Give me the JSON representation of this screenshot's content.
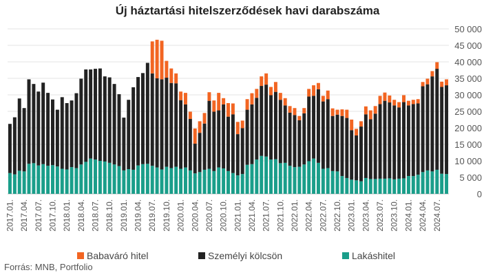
{
  "chart_data": {
    "type": "bar",
    "stacked": true,
    "title": "Új háztartási hitelszerződések havi darabszáma",
    "x": [
      "2017.01.",
      "2017.02.",
      "2017.03.",
      "2017.04.",
      "2017.05.",
      "2017.06.",
      "2017.07.",
      "2017.08.",
      "2017.09.",
      "2017.10.",
      "2017.11.",
      "2017.12.",
      "2018.01.",
      "2018.02.",
      "2018.03.",
      "2018.04.",
      "2018.05.",
      "2018.06.",
      "2018.07.",
      "2018.08.",
      "2018.09.",
      "2018.10.",
      "2018.11.",
      "2018.12.",
      "2019.01.",
      "2019.02.",
      "2019.03.",
      "2019.04.",
      "2019.05.",
      "2019.06.",
      "2019.07.",
      "2019.08.",
      "2019.09.",
      "2019.10.",
      "2019.11.",
      "2019.12.",
      "2020.01.",
      "2020.02.",
      "2020.03.",
      "2020.04.",
      "2020.05.",
      "2020.06.",
      "2020.07.",
      "2020.08.",
      "2020.09.",
      "2020.10.",
      "2020.11.",
      "2020.12.",
      "2021.01.",
      "2021.02.",
      "2021.03.",
      "2021.04.",
      "2021.05.",
      "2021.06.",
      "2021.07.",
      "2021.08.",
      "2021.09.",
      "2021.10.",
      "2021.11.",
      "2021.12.",
      "2022.01.",
      "2022.02.",
      "2022.03.",
      "2022.04.",
      "2022.05.",
      "2022.06.",
      "2022.07.",
      "2022.08.",
      "2022.09.",
      "2022.10.",
      "2022.11.",
      "2022.12.",
      "2023.01.",
      "2023.02.",
      "2023.03.",
      "2023.04.",
      "2023.05.",
      "2023.06.",
      "2023.07.",
      "2023.08.",
      "2023.09.",
      "2023.10.",
      "2023.11.",
      "2023.12.",
      "2024.01.",
      "2024.02.",
      "2024.03.",
      "2024.04.",
      "2024.05.",
      "2024.06.",
      "2024.07.",
      "2024.08.",
      "2024.09."
    ],
    "xtick_labels": [
      "2017.01.",
      "2017.04.",
      "2017.07.",
      "2017.10.",
      "2018.01.",
      "2018.04.",
      "2018.07.",
      "2018.10.",
      "2019.01.",
      "2019.04.",
      "2019.07.",
      "2019.10.",
      "2020.01.",
      "2020.04.",
      "2020.07.",
      "2020.10.",
      "2021.01.",
      "2021.04.",
      "2021.07.",
      "2021.10.",
      "2022.01.",
      "2022.04.",
      "2022.07.",
      "2022.10.",
      "2023.01.",
      "2023.04.",
      "2023.07.",
      "2023.10.",
      "2024.01.",
      "2024.04.",
      "2024.07."
    ],
    "series": [
      {
        "name": "Lakáshitel",
        "color": "#1a9e8a",
        "values": [
          6300,
          5900,
          7000,
          6800,
          9100,
          9300,
          8600,
          9000,
          8500,
          8700,
          8300,
          7600,
          7400,
          8100,
          7800,
          8900,
          9700,
          10700,
          10400,
          10000,
          9800,
          9400,
          8900,
          8400,
          7100,
          7500,
          7300,
          8600,
          9000,
          9100,
          8500,
          8000,
          7400,
          8200,
          7800,
          8200,
          7600,
          8000,
          7100,
          6200,
          6600,
          7300,
          7600,
          6900,
          8000,
          7700,
          6900,
          6300,
          5600,
          6000,
          8800,
          9000,
          10400,
          11500,
          11300,
          10400,
          10500,
          9300,
          9400,
          8500,
          8100,
          8200,
          8900,
          9900,
          10700,
          9400,
          7600,
          7800,
          6900,
          6800,
          5400,
          4800,
          4300,
          4100,
          3800,
          4800,
          4500,
          4500,
          4600,
          4600,
          4700,
          4400,
          4600,
          4700,
          5400,
          5400,
          5800,
          6600,
          7100,
          6800,
          7300,
          6100,
          6000
        ]
      },
      {
        "name": "Személyi kölcsön",
        "color": "#222222",
        "values": [
          14900,
          17300,
          21900,
          19200,
          25600,
          24000,
          22400,
          24700,
          22100,
          19900,
          17200,
          21700,
          20100,
          20200,
          22700,
          26000,
          28000,
          27000,
          27500,
          28000,
          25800,
          25900,
          24400,
          21800,
          16000,
          21000,
          25000,
          26800,
          27600,
          30600,
          28000,
          27000,
          27300,
          27000,
          25800,
          25300,
          20800,
          19100,
          15600,
          9000,
          11900,
          14000,
          20600,
          18000,
          17300,
          19400,
          16500,
          17800,
          12500,
          13900,
          16700,
          18100,
          18700,
          21200,
          21800,
          19500,
          20400,
          19200,
          17400,
          16100,
          15800,
          14100,
          15500,
          19600,
          19000,
          22300,
          20400,
          20900,
          16700,
          17200,
          18200,
          18200,
          15000,
          13600,
          16600,
          19300,
          18100,
          19800,
          22600,
          23600,
          23000,
          22400,
          21600,
          23100,
          21400,
          21800,
          21600,
          26000,
          26100,
          28800,
          30600,
          26300,
          26900
        ]
      },
      {
        "name": "Babaváró hitel",
        "color": "#f26522",
        "values": [
          0,
          0,
          0,
          0,
          0,
          0,
          0,
          0,
          0,
          0,
          0,
          0,
          0,
          0,
          0,
          0,
          0,
          0,
          0,
          0,
          0,
          0,
          0,
          0,
          0,
          0,
          0,
          0,
          0,
          0,
          9700,
          11700,
          11700,
          5100,
          4400,
          3000,
          2600,
          3500,
          2200,
          4600,
          3500,
          3200,
          2600,
          3400,
          5300,
          1900,
          4100,
          3300,
          3700,
          2300,
          3200,
          3400,
          2700,
          2900,
          3400,
          2500,
          3000,
          2100,
          2200,
          2000,
          2100,
          1300,
          1600,
          2300,
          3200,
          1900,
          1700,
          2600,
          2300,
          1500,
          2000,
          2500,
          3200,
          2000,
          1600,
          2400,
          2700,
          2300,
          2500,
          2500,
          2100,
          1700,
          1600,
          2100,
          1400,
          1300,
          1300,
          1300,
          1700,
          1600,
          2000,
          1600,
          1800
        ]
      }
    ],
    "ylim": [
      0,
      50000
    ],
    "yticks": [
      "0",
      "5 000",
      "10 000",
      "15 000",
      "20 000",
      "25 000",
      "30 000",
      "35 000",
      "40 000",
      "45 000",
      "50 000"
    ],
    "ytick_values": [
      0,
      5000,
      10000,
      15000,
      20000,
      25000,
      30000,
      35000,
      40000,
      45000,
      50000
    ],
    "legend_position": "bottom",
    "source": "Forrás: MNB, Portfolio"
  }
}
